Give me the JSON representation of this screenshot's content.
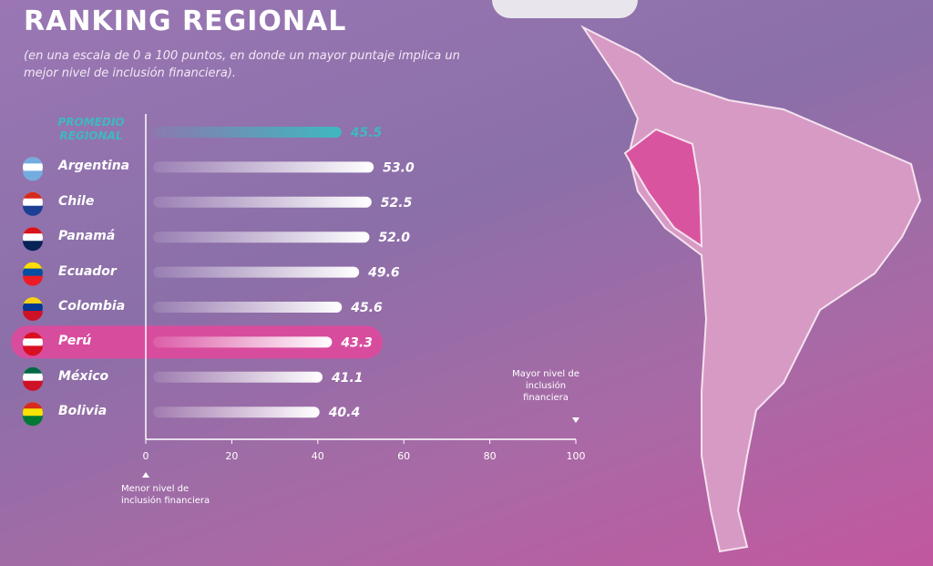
{
  "chart_data": {
    "type": "hbar",
    "title": "RANKING REGIONAL",
    "subtitle": "(en una escala de 0 a 100 puntos, en donde un mayor puntaje implica un mejor nivel de inclusión financiera).",
    "categories": [
      "PROMEDIO REGIONAL",
      "Argentina",
      "Chile",
      "Panamá",
      "Ecuador",
      "Colombia",
      "Perú",
      "México",
      "Bolivia"
    ],
    "values": [
      45.5,
      53.0,
      52.5,
      52.0,
      49.6,
      45.6,
      43.3,
      41.1,
      40.4
    ],
    "value_labels": [
      "45.5",
      "53.0",
      "52.5",
      "52.0",
      "49.6",
      "45.6",
      "43.3",
      "41.1",
      "40.4"
    ],
    "colors": [
      "#3fb8bf",
      "#ffffff",
      "#ffffff",
      "#ffffff",
      "#ffffff",
      "#ffffff",
      "#ffffff",
      "#ffffff",
      "#ffffff"
    ],
    "highlight": "Perú",
    "highlight_color": "#d84c9e",
    "xlim": [
      0,
      100
    ],
    "xticks": [
      0,
      20,
      40,
      60,
      80,
      100
    ],
    "annotations": [
      "Mayor nivel de inclusión financiera",
      "Menor nivel de inclusión financiera"
    ]
  }
}
